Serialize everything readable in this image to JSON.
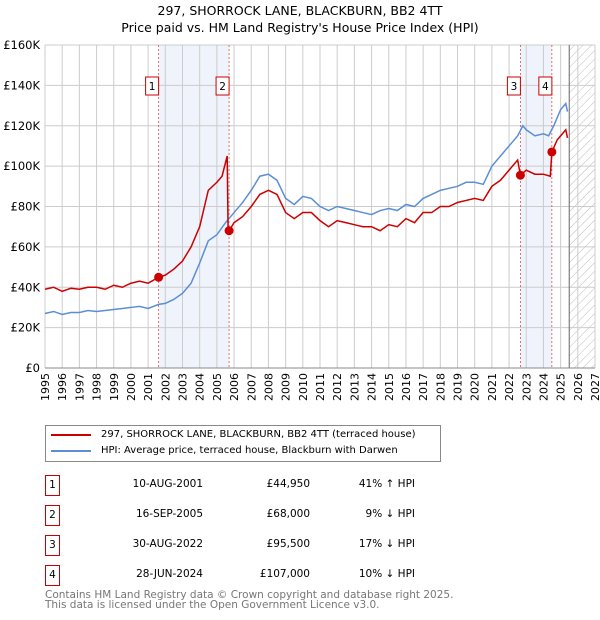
{
  "title": "297, SHORROCK LANE, BLACKBURN, BB2 4TT",
  "subtitle": "Price paid vs. HM Land Registry's House Price Index (HPI)",
  "chart_data": {
    "type": "line",
    "ylim": [
      0,
      160000
    ],
    "xlim": [
      1995,
      2027
    ],
    "yticks": [
      0,
      20000,
      40000,
      60000,
      80000,
      100000,
      120000,
      140000,
      160000
    ],
    "ytick_labels": [
      "£0",
      "£20K",
      "£40K",
      "£60K",
      "£80K",
      "£100K",
      "£120K",
      "£140K",
      "£160K"
    ],
    "xticks": [
      1995,
      1996,
      1997,
      1998,
      1999,
      2000,
      2001,
      2002,
      2003,
      2004,
      2005,
      2006,
      2007,
      2008,
      2009,
      2010,
      2011,
      2012,
      2013,
      2014,
      2015,
      2016,
      2017,
      2018,
      2019,
      2020,
      2021,
      2022,
      2023,
      2024,
      2025,
      2026,
      2027
    ],
    "grid": true,
    "shaded_ranges": [
      [
        2001.61,
        2005.71
      ],
      [
        2022.66,
        2024.49
      ]
    ],
    "forecast_from": 2025.5,
    "series": [
      {
        "name": "297, SHORROCK LANE, BLACKBURN, BB2 4TT (terraced house)",
        "color": "#cc0000",
        "x": [
          1995,
          1995.5,
          1996,
          1996.5,
          1997,
          1997.5,
          1998,
          1998.5,
          1999,
          1999.5,
          2000,
          2000.5,
          2001,
          2001.61,
          2002,
          2002.5,
          2003,
          2003.5,
          2004,
          2004.5,
          2005,
          2005.3,
          2005.6,
          2005.65,
          2005.71,
          2006,
          2006.5,
          2007,
          2007.5,
          2008,
          2008.5,
          2009,
          2009.5,
          2010,
          2010.5,
          2011,
          2011.5,
          2012,
          2012.5,
          2013,
          2013.5,
          2014,
          2014.5,
          2015,
          2015.5,
          2016,
          2016.5,
          2017,
          2017.5,
          2018,
          2018.5,
          2019,
          2019.5,
          2020,
          2020.5,
          2021,
          2021.5,
          2022,
          2022.5,
          2022.66,
          2023,
          2023.5,
          2024,
          2024.4,
          2024.49,
          2024.8,
          2025,
          2025.3,
          2025.4
        ],
        "y": [
          39000,
          40000,
          38000,
          39500,
          39000,
          40000,
          40000,
          39000,
          41000,
          40000,
          42000,
          43000,
          42000,
          44950,
          46000,
          49000,
          53000,
          60000,
          70000,
          88000,
          92000,
          95000,
          105000,
          70000,
          68000,
          72000,
          75000,
          80000,
          86000,
          88000,
          86000,
          77000,
          74000,
          77000,
          77000,
          73000,
          70000,
          73000,
          72000,
          71000,
          70000,
          70000,
          68000,
          71000,
          70000,
          74000,
          72000,
          77000,
          77000,
          80000,
          80000,
          82000,
          83000,
          84000,
          83000,
          90000,
          93000,
          98000,
          103000,
          95500,
          98000,
          96000,
          96000,
          95000,
          107000,
          113000,
          115000,
          118000,
          114000
        ]
      },
      {
        "name": "HPI: Average price, terraced house, Blackburn with Darwen",
        "color": "#5b8ed6",
        "x": [
          1995,
          1995.5,
          1996,
          1996.5,
          1997,
          1997.5,
          1998,
          1998.5,
          1999,
          1999.5,
          2000,
          2000.5,
          2001,
          2001.61,
          2002,
          2002.5,
          2003,
          2003.5,
          2004,
          2004.5,
          2005,
          2005.5,
          2006,
          2006.5,
          2007,
          2007.5,
          2008,
          2008.5,
          2009,
          2009.5,
          2010,
          2010.5,
          2011,
          2011.5,
          2012,
          2012.5,
          2013,
          2013.5,
          2014,
          2014.5,
          2015,
          2015.5,
          2016,
          2016.5,
          2017,
          2017.5,
          2018,
          2018.5,
          2019,
          2019.5,
          2020,
          2020.5,
          2021,
          2021.5,
          2022,
          2022.5,
          2022.8,
          2023,
          2023.5,
          2024,
          2024.3,
          2024.6,
          2025,
          2025.3,
          2025.4
        ],
        "y": [
          27000,
          28000,
          26500,
          27500,
          27500,
          28500,
          28000,
          28500,
          29000,
          29500,
          30000,
          30500,
          29500,
          31500,
          32000,
          34000,
          37000,
          42000,
          52000,
          63000,
          66000,
          72000,
          77000,
          82000,
          88000,
          95000,
          96000,
          93000,
          84000,
          81000,
          85000,
          84000,
          80000,
          78000,
          80000,
          79000,
          78000,
          77000,
          76000,
          78000,
          79000,
          78000,
          81000,
          80000,
          84000,
          86000,
          88000,
          89000,
          90000,
          92000,
          92000,
          91000,
          100000,
          105000,
          110000,
          115000,
          120000,
          118000,
          115000,
          116000,
          115000,
          120000,
          128000,
          131000,
          127000
        ]
      }
    ],
    "markers": [
      {
        "label": "1",
        "x": 2001.61,
        "y": 44950
      },
      {
        "label": "2",
        "x": 2005.71,
        "y": 68000
      },
      {
        "label": "3",
        "x": 2022.66,
        "y": 95500
      },
      {
        "label": "4",
        "x": 2024.49,
        "y": 107000
      }
    ]
  },
  "transactions": [
    {
      "num": "1",
      "date": "10-AUG-2001",
      "price": "£44,950",
      "hpi": "41% ↑ HPI"
    },
    {
      "num": "2",
      "date": "16-SEP-2005",
      "price": "£68,000",
      "hpi": "9% ↓ HPI"
    },
    {
      "num": "3",
      "date": "30-AUG-2022",
      "price": "£95,500",
      "hpi": "17% ↓ HPI"
    },
    {
      "num": "4",
      "date": "28-JUN-2024",
      "price": "£107,000",
      "hpi": "10% ↓ HPI"
    }
  ],
  "footer": {
    "line1": "Contains HM Land Registry data © Crown copyright and database right 2025.",
    "line2": "This data is licensed under the Open Government Licence v3.0."
  }
}
